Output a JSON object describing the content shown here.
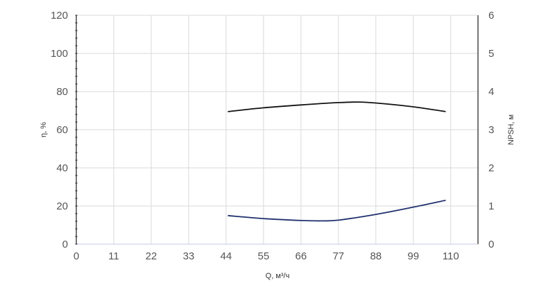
{
  "chart_data": {
    "type": "line",
    "title": "",
    "xlabel": "Q, м³/ч",
    "ylabel_left": "η, %",
    "ylabel_right": "NPSH, м",
    "x_ticks": [
      0,
      11,
      22,
      33,
      44,
      55,
      66,
      77,
      88,
      99,
      110
    ],
    "xlim": [
      0,
      118
    ],
    "ylim_left": [
      0,
      120
    ],
    "y_ticks_left": [
      0,
      20,
      40,
      60,
      80,
      100,
      120
    ],
    "ylim_right": [
      0,
      6
    ],
    "y_ticks_right": [
      0,
      1,
      2,
      3,
      4,
      5,
      6
    ],
    "grid": true,
    "series": [
      {
        "axis": "left",
        "color": "#111111",
        "x": [
          44.5,
          55,
          66,
          77,
          83,
          88,
          99,
          108.5
        ],
        "y": [
          69.5,
          71.5,
          73,
          74.2,
          74.5,
          74,
          72,
          69.5
        ]
      },
      {
        "axis": "right",
        "color": "#1f2f6e",
        "x": [
          44.5,
          55,
          66,
          72,
          77,
          88,
          99,
          108.5
        ],
        "y": [
          0.75,
          0.67,
          0.62,
          0.61,
          0.63,
          0.78,
          0.97,
          1.15
        ]
      }
    ]
  }
}
